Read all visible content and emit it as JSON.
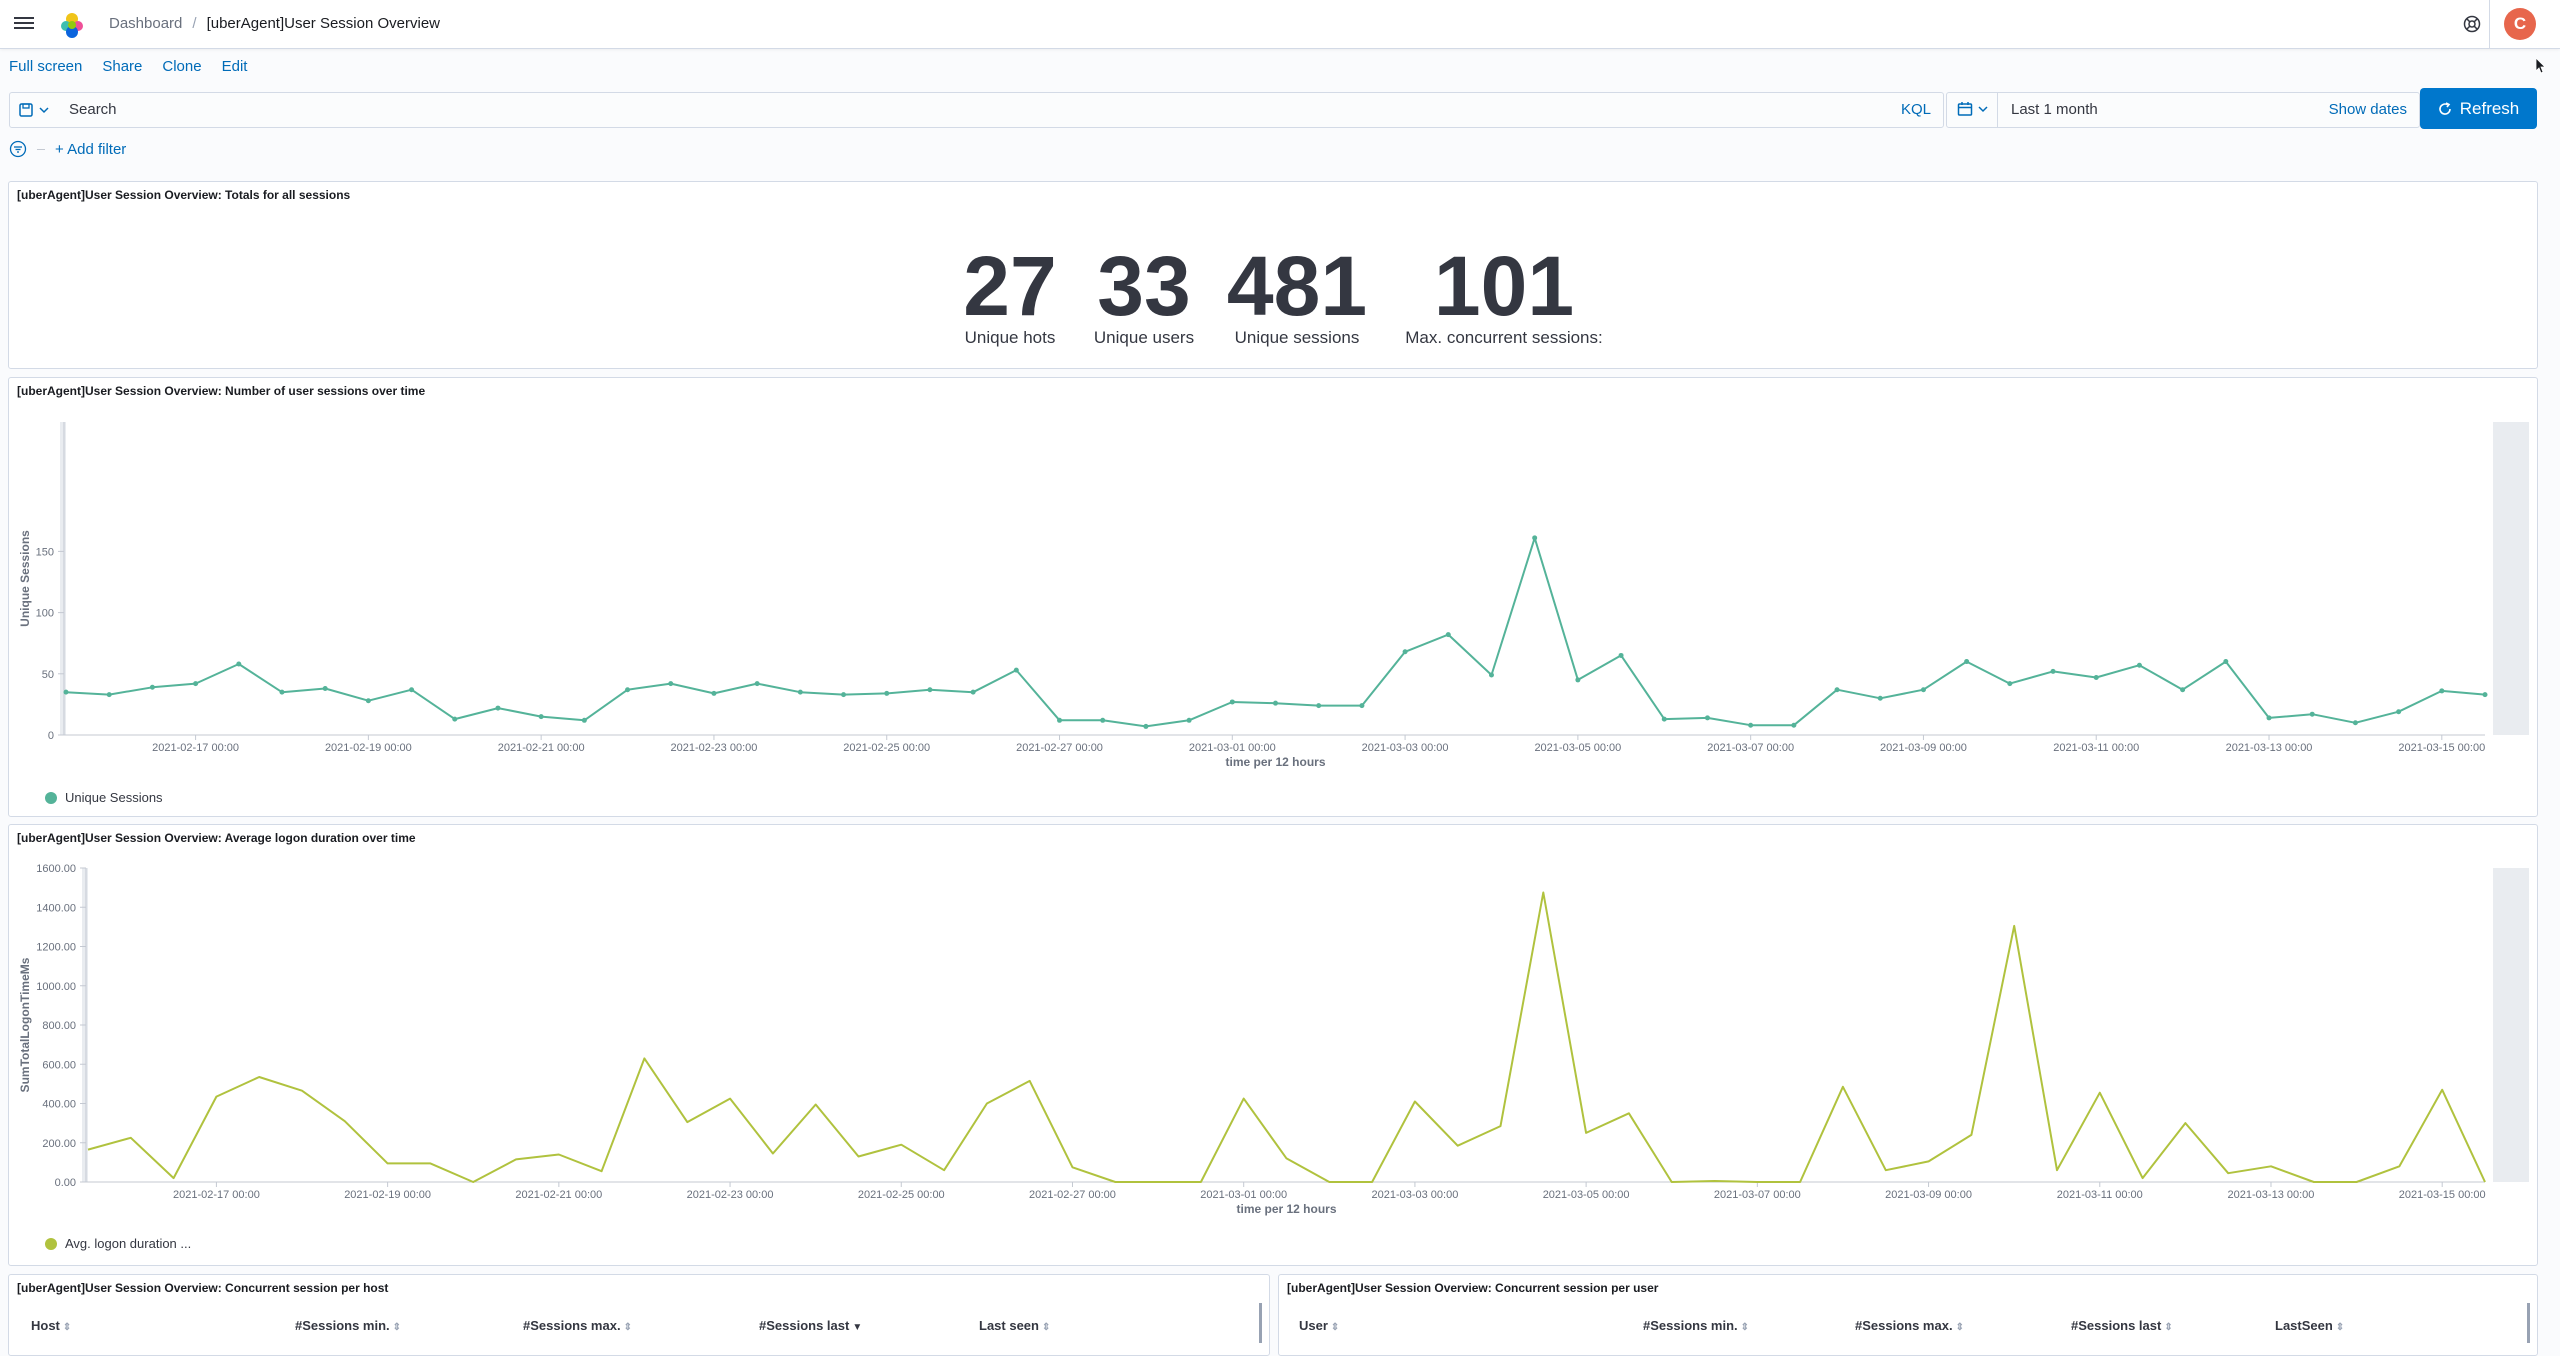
{
  "header": {
    "breadcrumb_root": "Dashboard",
    "breadcrumb_separator": "/",
    "title": "[uberAgent]User Session Overview",
    "avatar_initial": "C"
  },
  "menu": {
    "full_screen": "Full screen",
    "share": "Share",
    "clone": "Clone",
    "edit": "Edit"
  },
  "query": {
    "search_placeholder": "Search",
    "language": "KQL",
    "date_range": "Last 1 month",
    "show_dates": "Show dates",
    "refresh": "Refresh",
    "add_filter": "+ Add filter"
  },
  "panels": {
    "totals": {
      "title": "[uberAgent]User Session Overview: Totals for all sessions",
      "metrics": [
        {
          "value": "27",
          "label": "Unique hots"
        },
        {
          "value": "33",
          "label": "Unique users"
        },
        {
          "value": "481",
          "label": "Unique sessions"
        },
        {
          "value": "101",
          "label": "Max. concurrent sessions:"
        }
      ]
    },
    "sessions_over_time": {
      "title": "[uberAgent]User Session Overview: Number of user sessions over time",
      "legend": "Unique Sessions"
    },
    "logon_duration": {
      "title": "[uberAgent]User Session Overview: Average logon duration over time",
      "legend": "Avg. logon duration ..."
    },
    "per_host": {
      "title": "[uberAgent]User Session Overview: Concurrent session per host",
      "columns": [
        "Host",
        "#Sessions min.",
        "#Sessions max.",
        "#Sessions last",
        "Last seen"
      ]
    },
    "per_user": {
      "title": "[uberAgent]User Session Overview: Concurrent session per user",
      "columns": [
        "User",
        "#Sessions min.",
        "#Sessions max.",
        "#Sessions last",
        "LastSeen"
      ]
    }
  },
  "colors": {
    "accent": "#0077cc",
    "link": "#006bb8",
    "sessions_series": "#54b399",
    "logon_series": "#b0c23e",
    "avatar": "#e7664c"
  },
  "chart_data": [
    {
      "type": "line",
      "xlabel": "time per 12 hours",
      "ylabel": "Unique Sessions",
      "ylim": [
        0,
        175
      ],
      "yticks": [
        0,
        50,
        100,
        150
      ],
      "xticks": [
        "2021-02-17 00:00",
        "2021-02-19 00:00",
        "2021-02-21 00:00",
        "2021-02-23 00:00",
        "2021-02-25 00:00",
        "2021-02-27 00:00",
        "2021-03-01 00:00",
        "2021-03-03 00:00",
        "2021-03-05 00:00",
        "2021-03-07 00:00",
        "2021-03-09 00:00",
        "2021-03-11 00:00",
        "2021-03-13 00:00",
        "2021-03-15 00:00"
      ],
      "x_start": "2021-02-15 12:00",
      "x_step_hours": 12,
      "series": [
        {
          "name": "Unique Sessions",
          "values": [
            35,
            33,
            39,
            42,
            58,
            35,
            38,
            28,
            37,
            13,
            22,
            15,
            12,
            37,
            42,
            34,
            42,
            35,
            33,
            34,
            37,
            35,
            53,
            12,
            12,
            7,
            12,
            27,
            26,
            24,
            24,
            68,
            82,
            49,
            161,
            45,
            65,
            13,
            14,
            8,
            8,
            37,
            30,
            37,
            60,
            42,
            52,
            47,
            57,
            37,
            60,
            14,
            17,
            10,
            19,
            36,
            33
          ]
        }
      ],
      "legend": "bottom-left",
      "grid": false
    },
    {
      "type": "line",
      "xlabel": "time per 12 hours",
      "ylabel": "SumTotalLogonTimeMs",
      "ylim": [
        0,
        1600
      ],
      "yticks": [
        "0.00",
        "200.00",
        "400.00",
        "600.00",
        "800.00",
        "1000.00",
        "1200.00",
        "1400.00",
        "1600.00"
      ],
      "xticks": [
        "2021-02-17 00:00",
        "2021-02-19 00:00",
        "2021-02-21 00:00",
        "2021-02-23 00:00",
        "2021-02-25 00:00",
        "2021-02-27 00:00",
        "2021-03-01 00:00",
        "2021-03-03 00:00",
        "2021-03-05 00:00",
        "2021-03-07 00:00",
        "2021-03-09 00:00",
        "2021-03-11 00:00",
        "2021-03-13 00:00",
        "2021-03-15 00:00"
      ],
      "x_start": "2021-02-15 12:00",
      "x_step_hours": 12,
      "series": [
        {
          "name": "Avg. logon duration ...",
          "values": [
            165,
            225,
            20,
            435,
            535,
            465,
            310,
            95,
            95,
            0,
            115,
            140,
            55,
            630,
            305,
            425,
            145,
            395,
            130,
            190,
            60,
            400,
            515,
            75,
            0,
            0,
            0,
            425,
            120,
            0,
            0,
            410,
            185,
            285,
            1475,
            250,
            350,
            0,
            5,
            0,
            0,
            485,
            60,
            105,
            240,
            1305,
            60,
            455,
            20,
            300,
            45,
            80,
            0,
            0,
            80,
            470,
            0
          ]
        }
      ],
      "legend": "bottom-left",
      "grid": false
    }
  ]
}
